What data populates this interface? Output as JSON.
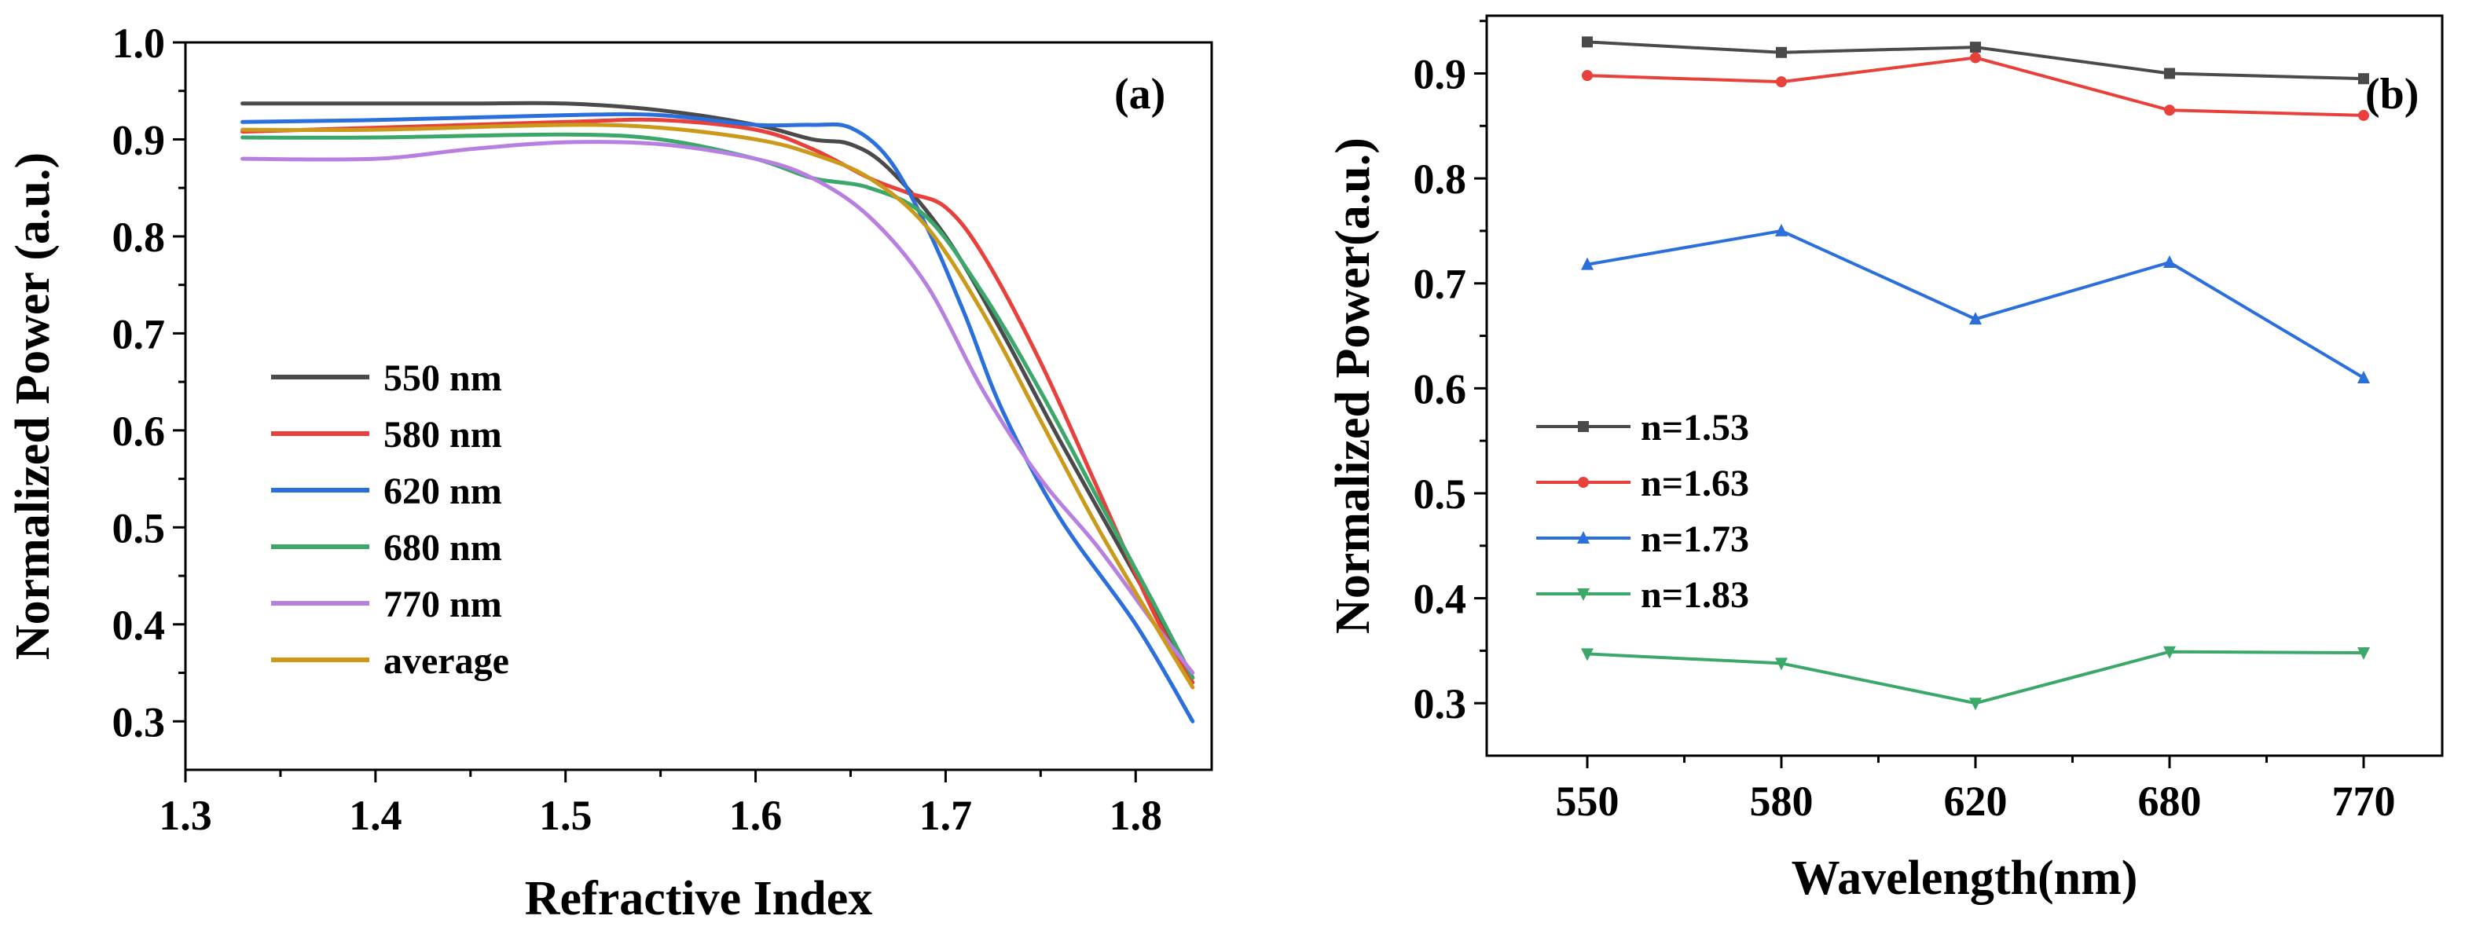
{
  "colors": {
    "550 nm": "#4a4a4a",
    "580 nm": "#e8403a",
    "620 nm": "#2a6fdb",
    "680 nm": "#3ba86a",
    "770 nm": "#b77fe0",
    "average": "#cc9a1a",
    "n=1.53": "#4a4a4a",
    "n=1.63": "#e8403a",
    "n=1.73": "#2a6fdb",
    "n=1.83": "#3ba86a"
  },
  "chart_data": [
    {
      "type": "line",
      "panel_label": "(a)",
      "xlabel": "Refractive Index",
      "ylabel": "Normalized Power (a.u.)",
      "xlim": [
        1.3,
        1.84
      ],
      "ylim": [
        0.25,
        1.0
      ],
      "xticks": [
        1.3,
        1.4,
        1.5,
        1.6,
        1.7,
        1.8
      ],
      "xtick_labels": [
        "1.3",
        "1.4",
        "1.5",
        "1.6",
        "1.7",
        "1.8"
      ],
      "yticks": [
        0.3,
        0.4,
        0.5,
        0.6,
        0.7,
        0.8,
        0.9,
        1.0
      ],
      "ytick_labels": [
        "0.3",
        "0.4",
        "0.5",
        "0.6",
        "0.7",
        "0.8",
        "0.9",
        "1.0"
      ],
      "legend_position": "center-left",
      "series": [
        {
          "name": "550 nm",
          "x": [
            1.33,
            1.4,
            1.45,
            1.5,
            1.55,
            1.6,
            1.63,
            1.65,
            1.67,
            1.7,
            1.73,
            1.76,
            1.8,
            1.83
          ],
          "y": [
            0.937,
            0.937,
            0.937,
            0.937,
            0.93,
            0.915,
            0.9,
            0.895,
            0.87,
            0.8,
            0.7,
            0.59,
            0.45,
            0.345
          ]
        },
        {
          "name": "580 nm",
          "x": [
            1.33,
            1.4,
            1.5,
            1.55,
            1.6,
            1.63,
            1.66,
            1.68,
            1.7,
            1.72,
            1.75,
            1.78,
            1.81,
            1.83
          ],
          "y": [
            0.908,
            0.912,
            0.918,
            0.92,
            0.91,
            0.89,
            0.86,
            0.845,
            0.83,
            0.78,
            0.67,
            0.54,
            0.41,
            0.34
          ]
        },
        {
          "name": "620 nm",
          "x": [
            1.33,
            1.4,
            1.5,
            1.55,
            1.6,
            1.63,
            1.65,
            1.67,
            1.69,
            1.71,
            1.73,
            1.76,
            1.8,
            1.83
          ],
          "y": [
            0.918,
            0.92,
            0.925,
            0.925,
            0.915,
            0.915,
            0.912,
            0.88,
            0.81,
            0.72,
            0.62,
            0.51,
            0.4,
            0.3
          ]
        },
        {
          "name": "680 nm",
          "x": [
            1.33,
            1.4,
            1.5,
            1.55,
            1.6,
            1.63,
            1.66,
            1.69,
            1.72,
            1.75,
            1.78,
            1.81,
            1.83
          ],
          "y": [
            0.902,
            0.902,
            0.905,
            0.9,
            0.88,
            0.86,
            0.85,
            0.82,
            0.74,
            0.64,
            0.53,
            0.42,
            0.345
          ]
        },
        {
          "name": "770 nm",
          "x": [
            1.33,
            1.4,
            1.45,
            1.5,
            1.55,
            1.6,
            1.63,
            1.66,
            1.69,
            1.72,
            1.75,
            1.78,
            1.81,
            1.83
          ],
          "y": [
            0.88,
            0.88,
            0.89,
            0.897,
            0.895,
            0.88,
            0.86,
            0.82,
            0.75,
            0.64,
            0.55,
            0.48,
            0.4,
            0.35
          ]
        },
        {
          "name": "average",
          "x": [
            1.33,
            1.4,
            1.5,
            1.55,
            1.6,
            1.63,
            1.66,
            1.69,
            1.72,
            1.75,
            1.78,
            1.81,
            1.83
          ],
          "y": [
            0.91,
            0.91,
            0.915,
            0.912,
            0.9,
            0.885,
            0.86,
            0.81,
            0.72,
            0.61,
            0.5,
            0.4,
            0.335
          ]
        }
      ]
    },
    {
      "type": "line",
      "panel_label": "(b)",
      "xlabel": "Wavelength(nm)",
      "ylabel": "Normalized Power(a.u.)",
      "categories": [
        "550",
        "580",
        "620",
        "680",
        "770"
      ],
      "ylim": [
        0.25,
        0.955
      ],
      "yticks": [
        0.3,
        0.4,
        0.5,
        0.6,
        0.7,
        0.8,
        0.9
      ],
      "ytick_labels": [
        "0.3",
        "0.4",
        "0.5",
        "0.6",
        "0.7",
        "0.8",
        "0.9"
      ],
      "legend_position": "center-left",
      "series": [
        {
          "name": "n=1.53",
          "marker": "square",
          "values": [
            0.93,
            0.92,
            0.925,
            0.9,
            0.895
          ]
        },
        {
          "name": "n=1.63",
          "marker": "circle",
          "values": [
            0.898,
            0.892,
            0.915,
            0.865,
            0.86
          ]
        },
        {
          "name": "n=1.73",
          "marker": "triangle-up",
          "values": [
            0.718,
            0.75,
            0.666,
            0.72,
            0.61
          ]
        },
        {
          "name": "n=1.83",
          "marker": "triangle-down",
          "values": [
            0.347,
            0.338,
            0.3,
            0.349,
            0.348
          ]
        }
      ]
    }
  ]
}
